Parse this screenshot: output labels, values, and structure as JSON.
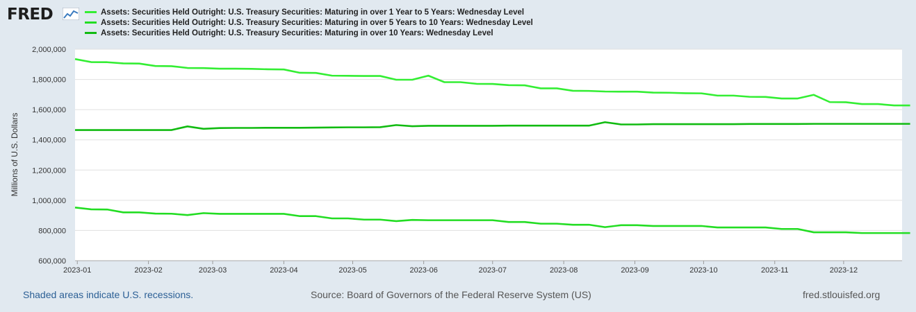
{
  "branding": {
    "logo": "FRED",
    "logo_icon": "chart-line-icon"
  },
  "footer": {
    "recession_note": "Shaded areas indicate U.S. recessions.",
    "source": "Source: Board of Governors of the Federal Reserve System (US)",
    "site": "fred.stlouisfed.org"
  },
  "chart_data": {
    "type": "line",
    "ylabel": "Millions of U.S. Dollars",
    "ylim": [
      600000,
      2000000
    ],
    "yticks": [
      "2,000,000",
      "1,800,000",
      "1,600,000",
      "1,400,000",
      "1,200,000",
      "1,000,000",
      "800,000",
      "600,000"
    ],
    "xlim": [
      0,
      51.5
    ],
    "xticks": [
      "2023-01",
      "2023-02",
      "2023-03",
      "2023-04",
      "2023-05",
      "2023-06",
      "2023-07",
      "2023-08",
      "2023-09",
      "2023-10",
      "2023-11",
      "2023-12"
    ],
    "xtick_pos": [
      0.14,
      4.57,
      8.57,
      13.0,
      17.29,
      21.71,
      26.0,
      30.43,
      34.86,
      39.14,
      43.57,
      47.86
    ],
    "grid": true,
    "series": [
      {
        "name": "Assets: Securities Held Outright: U.S. Treasury Securities: Maturing in over 1 Year to 5 Years: Wednesday Level",
        "color": "#33ee33",
        "values": [
          1935000,
          1915000,
          1914000,
          1906000,
          1905000,
          1889000,
          1888000,
          1876000,
          1875000,
          1871000,
          1871000,
          1870000,
          1867000,
          1866000,
          1844000,
          1843000,
          1825000,
          1824000,
          1823000,
          1823000,
          1798000,
          1798000,
          1825000,
          1782000,
          1782000,
          1771000,
          1770000,
          1762000,
          1761000,
          1741000,
          1741000,
          1725000,
          1724000,
          1720000,
          1719000,
          1719000,
          1713000,
          1712000,
          1709000,
          1708000,
          1693000,
          1693000,
          1685000,
          1684000,
          1674000,
          1674000,
          1698000,
          1650000,
          1649000,
          1637000,
          1637000,
          1628000,
          1628000
        ]
      },
      {
        "name": "Assets: Securities Held Outright: U.S. Treasury Securities: Maturing in over 5 Years to 10 Years: Wednesday Level",
        "color": "#22dd22",
        "values": [
          952000,
          940000,
          939000,
          920000,
          920000,
          912000,
          911000,
          902000,
          915000,
          910000,
          910000,
          910000,
          910000,
          910000,
          895000,
          895000,
          880000,
          880000,
          872000,
          872000,
          862000,
          870000,
          868000,
          868000,
          868000,
          868000,
          868000,
          856000,
          856000,
          845000,
          845000,
          838000,
          838000,
          822000,
          835000,
          835000,
          830000,
          830000,
          830000,
          830000,
          820000,
          820000,
          820000,
          820000,
          810000,
          810000,
          788000,
          788000,
          788000,
          783000,
          783000,
          783000,
          783000
        ]
      },
      {
        "name": "Assets: Securities Held Outright: U.S. Treasury Securities: Maturing in over 10 Years: Wednesday Level",
        "color": "#11bb11",
        "values": [
          1465000,
          1465000,
          1465000,
          1465000,
          1465000,
          1465000,
          1465000,
          1489000,
          1473000,
          1478000,
          1479000,
          1479000,
          1480000,
          1480000,
          1480000,
          1481000,
          1482000,
          1483000,
          1483000,
          1484000,
          1498000,
          1490000,
          1493000,
          1493000,
          1493000,
          1493000,
          1493000,
          1494000,
          1494000,
          1494000,
          1494000,
          1494000,
          1494000,
          1517000,
          1502000,
          1502000,
          1504000,
          1504000,
          1504000,
          1504000,
          1504000,
          1504000,
          1505000,
          1505000,
          1505000,
          1505000,
          1506000,
          1506000,
          1506000,
          1506000,
          1506000,
          1506000,
          1506000
        ]
      }
    ]
  }
}
